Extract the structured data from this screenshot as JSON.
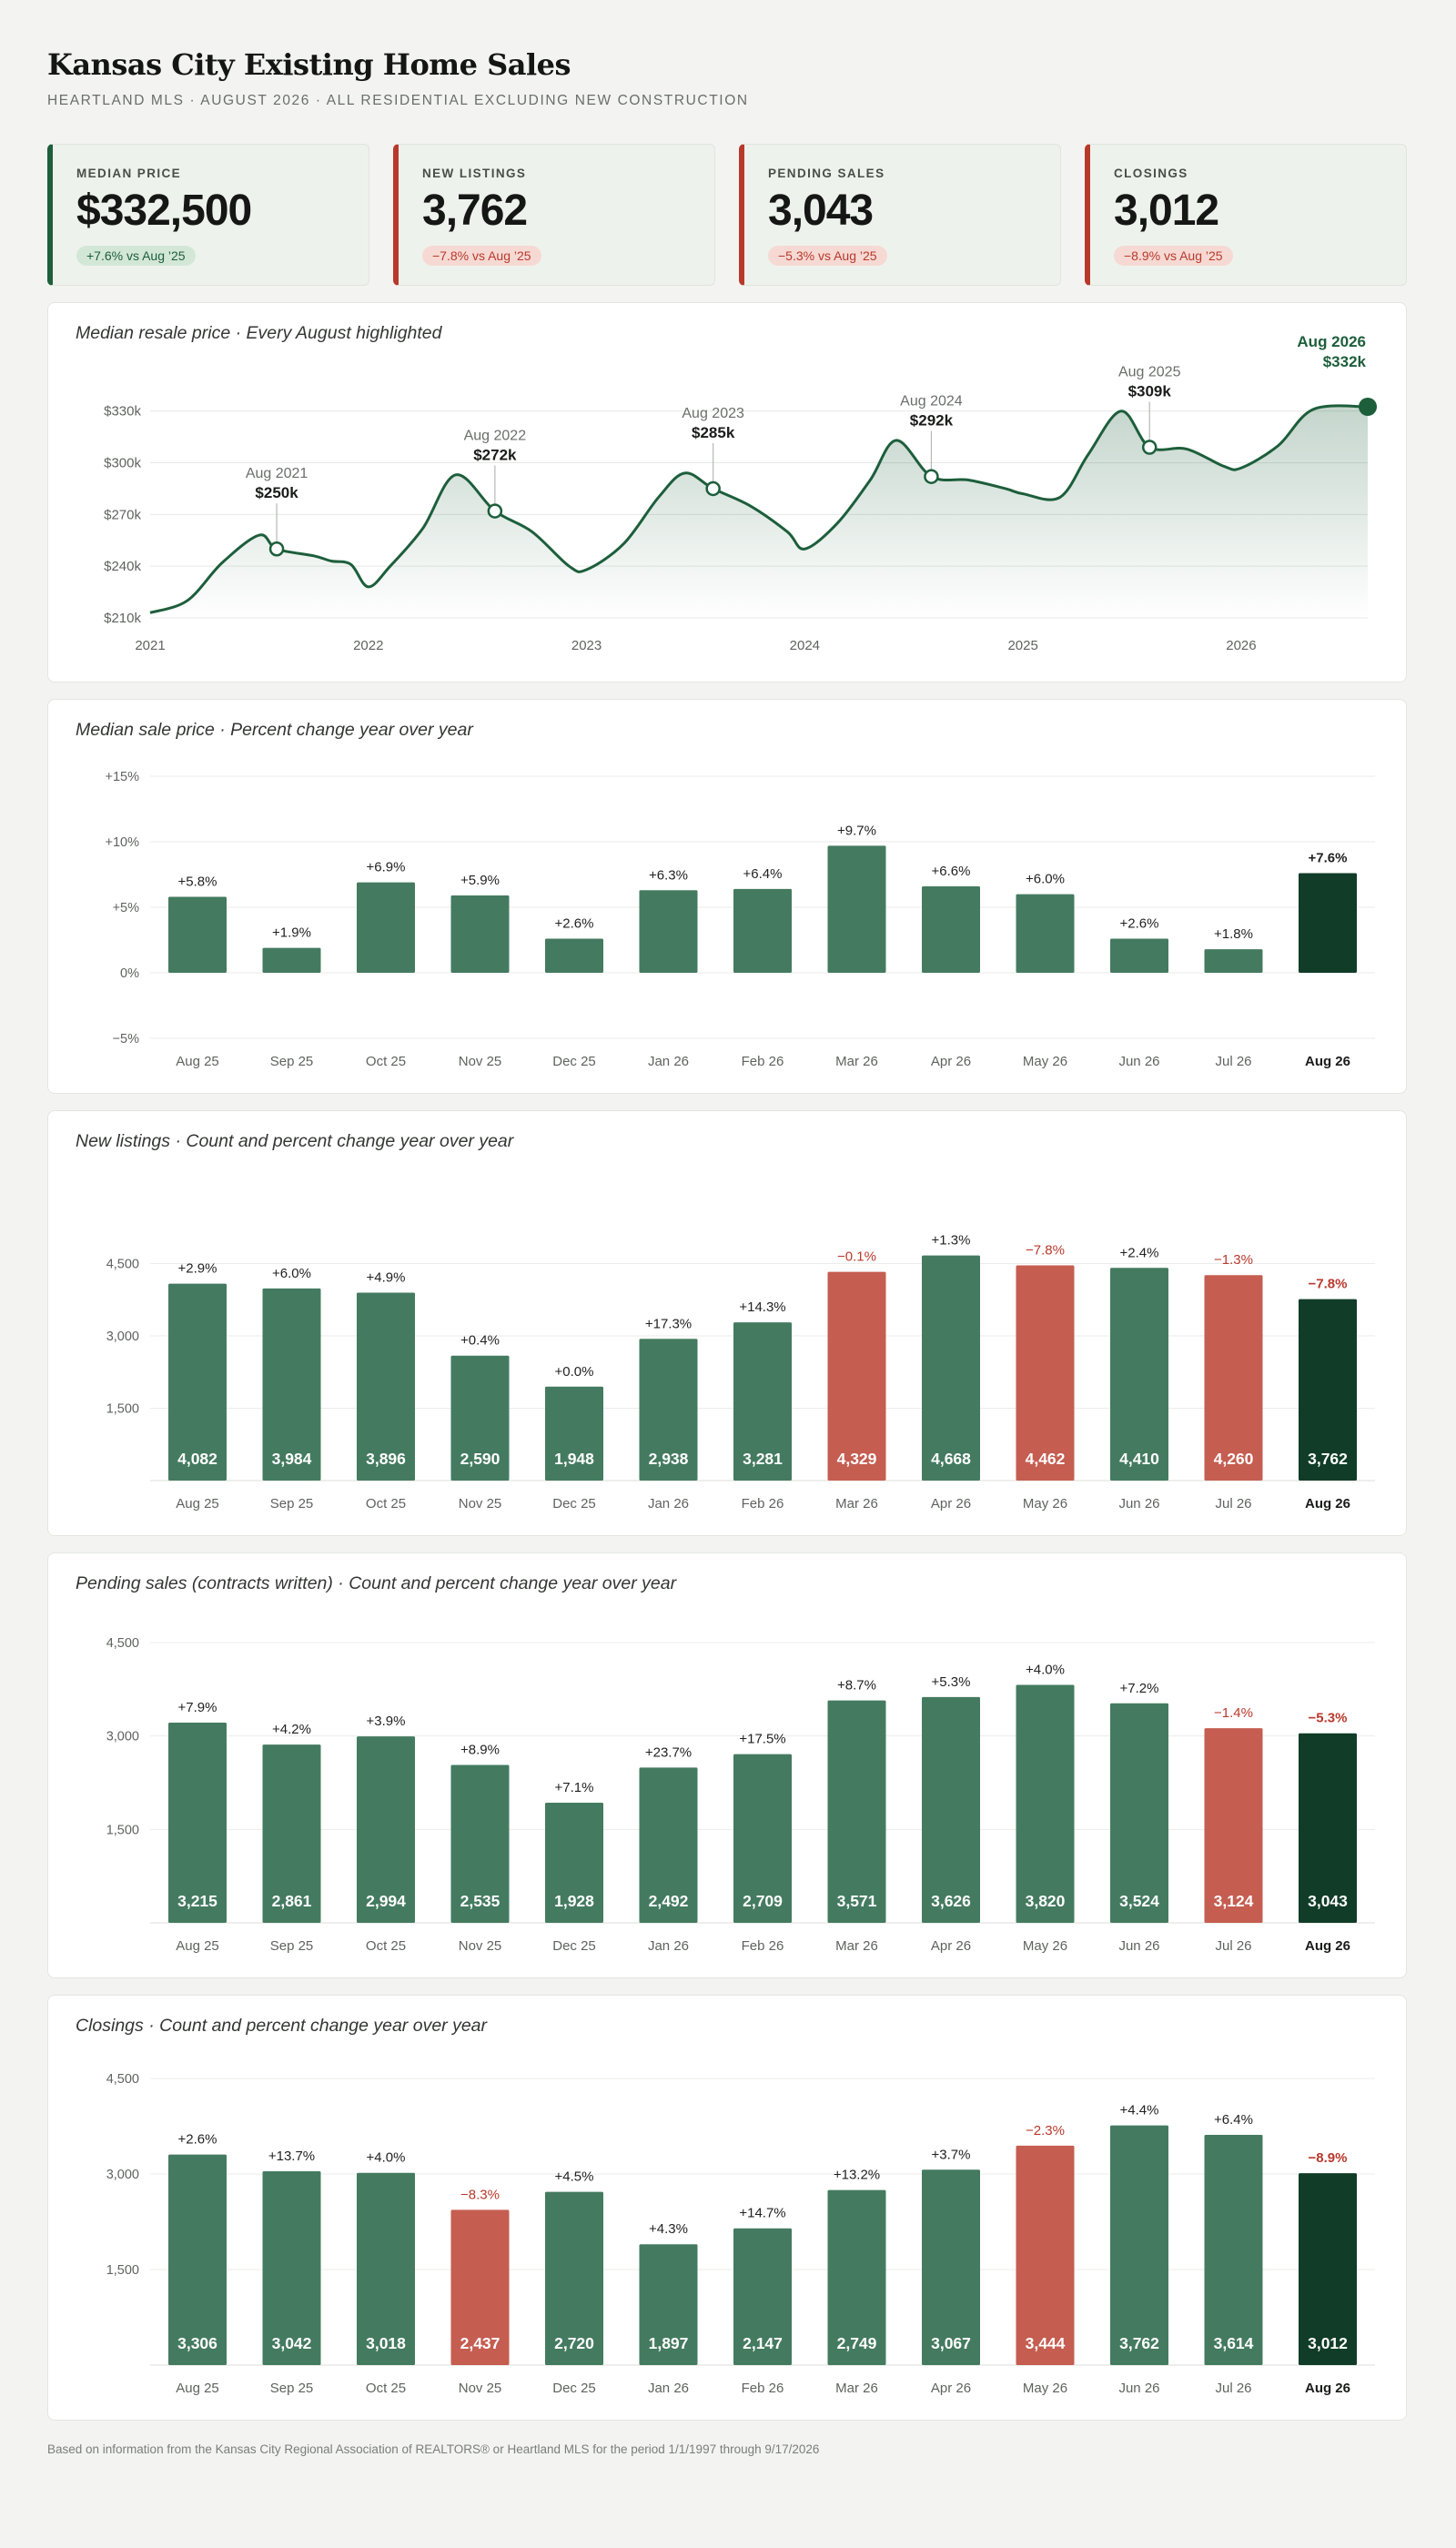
{
  "header": {
    "title": "Kansas City Existing Home Sales",
    "subtitle": "HEARTLAND MLS  ·  AUGUST 2026  ·  ALL RESIDENTIAL EXCLUDING NEW CONSTRUCTION"
  },
  "colors": {
    "green": "#447b60",
    "dark_green": "#113d28",
    "red": "#c55d51",
    "red_text": "#b8392c",
    "line": "#1d5e3b"
  },
  "kpis": [
    {
      "label": "MEDIAN PRICE",
      "value": "$332,500",
      "change": "+7.6% vs Aug ’25",
      "direction": "up"
    },
    {
      "label": "NEW LISTINGS",
      "value": "3,762",
      "change": "−7.8% vs Aug ’25",
      "direction": "down"
    },
    {
      "label": "PENDING SALES",
      "value": "3,043",
      "change": "−5.3% vs Aug ’25",
      "direction": "down"
    },
    {
      "label": "CLOSINGS",
      "value": "3,012",
      "change": "−8.9% vs Aug ’25",
      "direction": "down"
    }
  ],
  "footnote": "Based on information from the Kansas City Regional Association of REALTORS® or Heartland MLS for the period 1/1/1997 through 9/17/2026",
  "chart_data": [
    {
      "type": "area",
      "title": "Median resale price · Every August highlighted",
      "x_ticks": [
        "2021",
        "2022",
        "2023",
        "2024",
        "2025",
        "2026"
      ],
      "y_ticks": [
        "$210k",
        "$240k",
        "$270k",
        "$300k",
        "$330k"
      ],
      "ylim": [
        210,
        342
      ],
      "xlim": [
        2021.0,
        2026.58
      ],
      "y_unit": "thousand USD",
      "series": [
        {
          "values": [
            [
              2021.0,
              213
            ],
            [
              2021.17,
              220
            ],
            [
              2021.33,
              242
            ],
            [
              2021.5,
              258
            ],
            [
              2021.58,
              250
            ],
            [
              2021.75,
              246
            ],
            [
              2021.83,
              243
            ],
            [
              2021.92,
              241
            ],
            [
              2022.0,
              228
            ],
            [
              2022.1,
              240
            ],
            [
              2022.25,
              262
            ],
            [
              2022.4,
              293
            ],
            [
              2022.58,
              272
            ],
            [
              2022.75,
              260
            ],
            [
              2022.92,
              240
            ],
            [
              2023.0,
              238
            ],
            [
              2023.17,
              253
            ],
            [
              2023.33,
              280
            ],
            [
              2023.45,
              294
            ],
            [
              2023.58,
              285
            ],
            [
              2023.75,
              275
            ],
            [
              2023.92,
              260
            ],
            [
              2024.0,
              250
            ],
            [
              2024.15,
              265
            ],
            [
              2024.3,
              290
            ],
            [
              2024.42,
              313
            ],
            [
              2024.58,
              292
            ],
            [
              2024.75,
              290
            ],
            [
              2024.92,
              285
            ],
            [
              2025.0,
              282
            ],
            [
              2025.17,
              280
            ],
            [
              2025.3,
              305
            ],
            [
              2025.45,
              330
            ],
            [
              2025.58,
              309
            ],
            [
              2025.75,
              308
            ],
            [
              2025.92,
              298
            ],
            [
              2026.0,
              297
            ],
            [
              2026.17,
              310
            ],
            [
              2026.33,
              331
            ],
            [
              2026.58,
              332.5
            ]
          ]
        }
      ],
      "annotations": [
        {
          "label": "Aug 2021",
          "value_label": "$250k",
          "x": 2021.58,
          "y": 250
        },
        {
          "label": "Aug 2022",
          "value_label": "$272k",
          "x": 2022.58,
          "y": 272
        },
        {
          "label": "Aug 2023",
          "value_label": "$285k",
          "x": 2023.58,
          "y": 285
        },
        {
          "label": "Aug 2024",
          "value_label": "$292k",
          "x": 2024.58,
          "y": 292
        },
        {
          "label": "Aug 2025",
          "value_label": "$309k",
          "x": 2025.58,
          "y": 309
        },
        {
          "label": "Aug 2026",
          "value_label": "$332k",
          "x": 2026.58,
          "y": 332.5,
          "current": true
        }
      ]
    },
    {
      "type": "bar",
      "title": "Median sale price · Percent change year over year",
      "categories": [
        "Aug 25",
        "Sep 25",
        "Oct 25",
        "Nov 25",
        "Dec 25",
        "Jan 26",
        "Feb 26",
        "Mar 26",
        "Apr 26",
        "May 26",
        "Jun 26",
        "Jul 26",
        "Aug 26"
      ],
      "values": [
        5.8,
        1.9,
        6.9,
        5.9,
        2.6,
        6.3,
        6.4,
        9.7,
        6.6,
        6.0,
        2.6,
        1.8,
        7.6
      ],
      "top_labels": [
        "+5.8%",
        "+1.9%",
        "+6.9%",
        "+5.9%",
        "+2.6%",
        "+6.3%",
        "+6.4%",
        "+9.7%",
        "+6.6%",
        "+6.0%",
        "+2.6%",
        "+1.8%",
        "+7.6%"
      ],
      "y_ticks": [
        "+15%",
        "+10%",
        "+5%",
        "0%",
        "−5%"
      ],
      "ylim": [
        -5,
        15
      ]
    },
    {
      "type": "bar",
      "title": "New listings · Count and percent change year over year",
      "categories": [
        "Aug 25",
        "Sep 25",
        "Oct 25",
        "Nov 25",
        "Dec 25",
        "Jan 26",
        "Feb 26",
        "Mar 26",
        "Apr 26",
        "May 26",
        "Jun 26",
        "Jul 26",
        "Aug 26"
      ],
      "values": [
        4082,
        3984,
        3896,
        2590,
        1948,
        2938,
        3281,
        4329,
        4668,
        4462,
        4410,
        4260,
        3762
      ],
      "value_labels": [
        "4,082",
        "3,984",
        "3,896",
        "2,590",
        "1,948",
        "2,938",
        "3,281",
        "4,329",
        "4,668",
        "4,462",
        "4,410",
        "4,260",
        "3,762"
      ],
      "top_labels": [
        "+2.9%",
        "+6.0%",
        "+4.9%",
        "+0.4%",
        "+0.0%",
        "+17.3%",
        "+14.3%",
        "−0.1%",
        "+1.3%",
        "−7.8%",
        "+2.4%",
        "−1.3%",
        "−7.8%"
      ],
      "y_ticks": [
        "1,500",
        "3,000",
        "4,500"
      ],
      "ylim": [
        0,
        6000
      ]
    },
    {
      "type": "bar",
      "title": "Pending sales (contracts written) · Count and percent change year over year",
      "categories": [
        "Aug 25",
        "Sep 25",
        "Oct 25",
        "Nov 25",
        "Dec 25",
        "Jan 26",
        "Feb 26",
        "Mar 26",
        "Apr 26",
        "May 26",
        "Jun 26",
        "Jul 26",
        "Aug 26"
      ],
      "values": [
        3215,
        2861,
        2994,
        2535,
        1928,
        2492,
        2709,
        3571,
        3626,
        3820,
        3524,
        3124,
        3043
      ],
      "value_labels": [
        "3,215",
        "2,861",
        "2,994",
        "2,535",
        "1,928",
        "2,492",
        "2,709",
        "3,571",
        "3,626",
        "3,820",
        "3,524",
        "3,124",
        "3,043"
      ],
      "top_labels": [
        "+7.9%",
        "+4.2%",
        "+3.9%",
        "+8.9%",
        "+7.1%",
        "+23.7%",
        "+17.5%",
        "+8.7%",
        "+5.3%",
        "+4.0%",
        "+7.2%",
        "−1.4%",
        "−5.3%"
      ],
      "y_ticks": [
        "1,500",
        "3,000",
        "4,500"
      ],
      "ylim": [
        0,
        4500
      ]
    },
    {
      "type": "bar",
      "title": "Closings · Count and percent change year over year",
      "categories": [
        "Aug 25",
        "Sep 25",
        "Oct 25",
        "Nov 25",
        "Dec 25",
        "Jan 26",
        "Feb 26",
        "Mar 26",
        "Apr 26",
        "May 26",
        "Jun 26",
        "Jul 26",
        "Aug 26"
      ],
      "values": [
        3306,
        3042,
        3018,
        2437,
        2720,
        1897,
        2147,
        2749,
        3067,
        3444,
        3762,
        3614,
        3012
      ],
      "value_labels": [
        "3,306",
        "3,042",
        "3,018",
        "2,437",
        "2,720",
        "1,897",
        "2,147",
        "2,749",
        "3,067",
        "3,444",
        "3,762",
        "3,614",
        "3,012"
      ],
      "top_labels": [
        "+2.6%",
        "+13.7%",
        "+4.0%",
        "−8.3%",
        "+4.5%",
        "+4.3%",
        "+14.7%",
        "+13.2%",
        "+3.7%",
        "−2.3%",
        "+4.4%",
        "+6.4%",
        "−8.9%"
      ],
      "y_ticks": [
        "1,500",
        "3,000",
        "4,500"
      ],
      "ylim": [
        0,
        4500
      ]
    }
  ]
}
